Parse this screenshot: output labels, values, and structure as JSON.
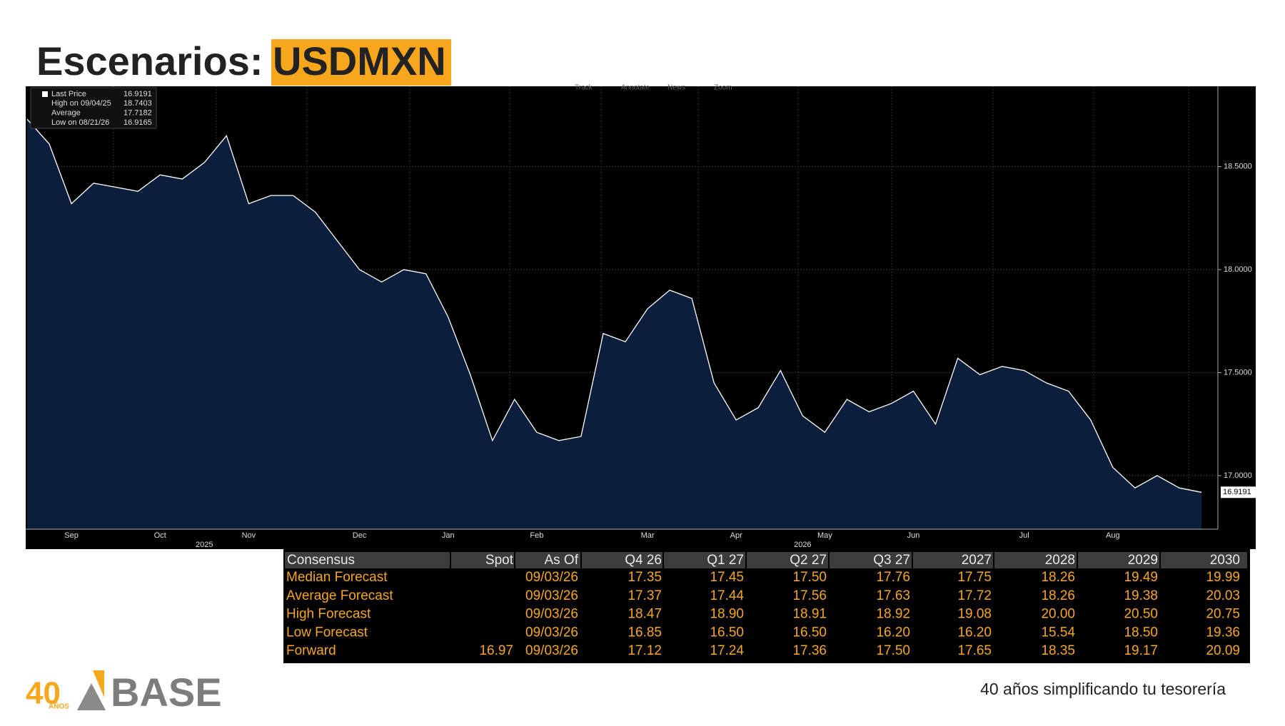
{
  "header": {
    "title": "Escenarios:",
    "highlight": "USDMXN"
  },
  "chart_data": {
    "type": "area",
    "toolbar": [
      "Track",
      "Annotate",
      "News",
      "Zoom"
    ],
    "legend_stats": [
      {
        "label": "Last Price",
        "value": 16.9191
      },
      {
        "label": "High on 09/04/25",
        "value": 18.7403
      },
      {
        "label": "Average",
        "value": 17.7182
      },
      {
        "label": "Low on 08/21/26",
        "value": 16.9165
      }
    ],
    "categories": [
      null,
      null,
      "Sep",
      null,
      null,
      null,
      "Oct",
      null,
      null,
      null,
      "Nov",
      null,
      null,
      null,
      null,
      "Dec",
      null,
      null,
      null,
      "Jan",
      null,
      null,
      null,
      "Feb",
      null,
      null,
      null,
      null,
      "Mar",
      null,
      null,
      null,
      "Apr",
      null,
      null,
      null,
      "May",
      null,
      null,
      null,
      "Jun",
      null,
      null,
      null,
      null,
      "Jul",
      null,
      null,
      null,
      "Aug",
      null,
      null,
      null,
      null
    ],
    "years": [
      null,
      null,
      null,
      null,
      null,
      null,
      null,
      null,
      "2025",
      null,
      null,
      null,
      null,
      null,
      null,
      null,
      null,
      null,
      null,
      null,
      null,
      null,
      null,
      null,
      null,
      null,
      null,
      null,
      null,
      null,
      null,
      null,
      null,
      null,
      null,
      "2026",
      null,
      null,
      null,
      null,
      null,
      null,
      null,
      null,
      null,
      null,
      null,
      null,
      null,
      null,
      null,
      null,
      null,
      null
    ],
    "series": [
      {
        "name": "USDMXN",
        "color": "#ffffff",
        "fill": "#0b1f3c",
        "values": [
          18.73,
          18.61,
          18.32,
          18.42,
          18.4,
          18.38,
          18.46,
          18.44,
          18.52,
          18.65,
          18.32,
          18.36,
          18.36,
          18.28,
          18.14,
          18.0,
          17.94,
          18.0,
          17.98,
          17.77,
          17.49,
          17.17,
          17.37,
          17.21,
          17.17,
          17.19,
          17.69,
          17.65,
          17.81,
          17.9,
          17.86,
          17.45,
          17.27,
          17.33,
          17.51,
          17.29,
          17.21,
          17.37,
          17.31,
          17.35,
          17.41,
          17.25,
          17.57,
          17.49,
          17.53,
          17.51,
          17.45,
          17.41,
          17.27,
          17.04,
          16.94,
          17.0,
          16.94,
          16.9191
        ]
      }
    ],
    "ylim": [
      16.74,
      18.89
    ],
    "yticks": [
      {
        "value": 17,
        "label": "17.0000"
      },
      {
        "value": 17.5,
        "label": "17.5000"
      },
      {
        "value": 18,
        "label": "18.0000"
      },
      {
        "value": 18.5,
        "label": "18.5000"
      }
    ],
    "grid": true,
    "background": "#000000"
  },
  "table": {
    "header": [
      "Consensus",
      "Spot",
      "As Of",
      "Q4 26",
      "Q1 27",
      "Q2 27",
      "Q3 27",
      "2027",
      "2028",
      "2029",
      "2030"
    ],
    "rows": [
      [
        "Median Forecast",
        null,
        "09/03/26",
        "17.35",
        "17.45",
        "17.50",
        "17.76",
        "17.75",
        "18.26",
        "19.49",
        "19.99"
      ],
      [
        "Average Forecast",
        null,
        "09/03/26",
        "17.37",
        "17.44",
        "17.56",
        "17.63",
        "17.72",
        "18.26",
        "19.38",
        "20.03"
      ],
      [
        "High Forecast",
        null,
        "09/03/26",
        "18.47",
        "18.90",
        "18.91",
        "18.92",
        "19.08",
        "20.00",
        "20.50",
        "20.75"
      ],
      [
        "Low Forecast",
        null,
        "09/03/26",
        "16.85",
        "16.50",
        "16.50",
        "16.20",
        "16.20",
        "15.54",
        "18.50",
        "19.36"
      ],
      [
        "Forward",
        "16.97",
        "09/03/26",
        "17.12",
        "17.24",
        "17.36",
        "17.50",
        "17.65",
        "18.35",
        "19.17",
        "20.09"
      ]
    ]
  },
  "logo": {
    "number": "40",
    "sub": "AÑOS",
    "name": "BASE"
  },
  "footer": {
    "tagline": "40 años simplificando tu tesorería"
  }
}
